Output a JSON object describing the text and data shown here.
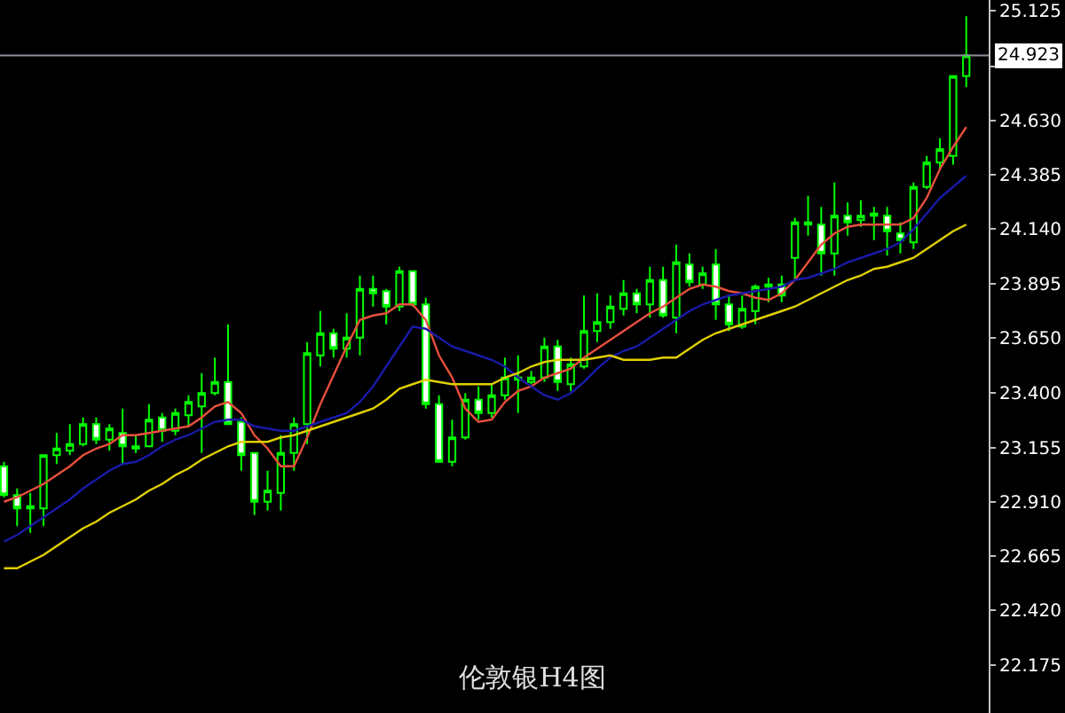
{
  "chart_data": {
    "type": "candlestick",
    "title": "伦敦银H4图",
    "categories": [
      null,
      null,
      null,
      null,
      null,
      null,
      null,
      null,
      null,
      null,
      null,
      null,
      null,
      null,
      null,
      null,
      null,
      null,
      null,
      null,
      null,
      null,
      null,
      null,
      null,
      null,
      null,
      null,
      null,
      null,
      null,
      null,
      null,
      null,
      null,
      null,
      null,
      null,
      null,
      null,
      null,
      null,
      null,
      null,
      null,
      null,
      null,
      null,
      null,
      null,
      null,
      null,
      null,
      null,
      null,
      null,
      null,
      null,
      null,
      null,
      null,
      null,
      null,
      null,
      null,
      null,
      null,
      null,
      null,
      null,
      null,
      null,
      null,
      null
    ],
    "color": "#00ff00",
    "ohlc": [
      [
        23.07,
        23.09,
        22.93,
        22.94
      ],
      [
        22.94,
        22.97,
        22.8,
        22.88
      ],
      [
        22.88,
        22.95,
        22.77,
        22.89
      ],
      [
        22.88,
        23.12,
        22.8,
        23.12
      ],
      [
        23.12,
        23.22,
        23.08,
        23.15
      ],
      [
        23.14,
        23.26,
        23.12,
        23.17
      ],
      [
        23.17,
        23.29,
        23.16,
        23.26
      ],
      [
        23.26,
        23.29,
        23.17,
        23.19
      ],
      [
        23.19,
        23.26,
        23.14,
        23.24
      ],
      [
        23.22,
        23.33,
        23.08,
        23.16
      ],
      [
        23.15,
        23.21,
        23.13,
        23.16
      ],
      [
        23.16,
        23.35,
        23.16,
        23.28
      ],
      [
        23.29,
        23.31,
        23.18,
        23.23
      ],
      [
        23.23,
        23.33,
        23.21,
        23.31
      ],
      [
        23.3,
        23.39,
        23.25,
        23.36
      ],
      [
        23.34,
        23.49,
        23.13,
        23.4
      ],
      [
        23.4,
        23.56,
        23.39,
        23.45
      ],
      [
        23.45,
        23.71,
        23.26,
        23.26
      ],
      [
        23.27,
        23.29,
        23.05,
        23.12
      ],
      [
        23.13,
        23.13,
        22.85,
        22.91
      ],
      [
        22.91,
        23.05,
        22.87,
        22.96
      ],
      [
        22.95,
        23.21,
        22.87,
        23.13
      ],
      [
        23.13,
        23.29,
        23.05,
        23.26
      ],
      [
        23.26,
        23.63,
        23.17,
        23.58
      ],
      [
        23.57,
        23.77,
        23.52,
        23.67
      ],
      [
        23.67,
        23.69,
        23.56,
        23.6
      ],
      [
        23.6,
        23.76,
        23.56,
        23.65
      ],
      [
        23.65,
        23.93,
        23.57,
        23.87
      ],
      [
        23.87,
        23.93,
        23.79,
        23.85
      ],
      [
        23.86,
        23.87,
        23.71,
        23.79
      ],
      [
        23.79,
        23.97,
        23.77,
        23.95
      ],
      [
        23.95,
        23.95,
        23.79,
        23.8
      ],
      [
        23.8,
        23.83,
        23.33,
        23.35
      ],
      [
        23.35,
        23.39,
        23.09,
        23.09
      ],
      [
        23.09,
        23.28,
        23.07,
        23.2
      ],
      [
        23.2,
        23.4,
        23.19,
        23.37
      ],
      [
        23.37,
        23.43,
        23.28,
        23.31
      ],
      [
        23.31,
        23.44,
        23.29,
        23.39
      ],
      [
        23.39,
        23.56,
        23.37,
        23.47
      ],
      [
        23.47,
        23.57,
        23.31,
        23.46
      ],
      [
        23.45,
        23.5,
        23.44,
        23.47
      ],
      [
        23.47,
        23.65,
        23.45,
        23.61
      ],
      [
        23.61,
        23.64,
        23.41,
        23.45
      ],
      [
        23.44,
        23.56,
        23.41,
        23.53
      ],
      [
        23.52,
        23.84,
        23.51,
        23.68
      ],
      [
        23.68,
        23.85,
        23.63,
        23.72
      ],
      [
        23.72,
        23.84,
        23.69,
        23.79
      ],
      [
        23.78,
        23.91,
        23.75,
        23.85
      ],
      [
        23.85,
        23.87,
        23.76,
        23.8
      ],
      [
        23.8,
        23.97,
        23.74,
        23.91
      ],
      [
        23.91,
        23.97,
        23.74,
        23.75
      ],
      [
        23.74,
        24.07,
        23.67,
        23.99
      ],
      [
        23.98,
        24.03,
        23.88,
        23.9
      ],
      [
        23.89,
        23.97,
        23.87,
        23.94
      ],
      [
        23.98,
        24.05,
        23.73,
        23.8
      ],
      [
        23.8,
        23.84,
        23.68,
        23.71
      ],
      [
        23.7,
        23.84,
        23.69,
        23.78
      ],
      [
        23.77,
        23.89,
        23.71,
        23.88
      ],
      [
        23.88,
        23.92,
        23.81,
        23.89
      ],
      [
        23.89,
        23.93,
        23.81,
        23.84
      ],
      [
        24.01,
        24.19,
        23.91,
        24.17
      ],
      [
        24.16,
        24.29,
        24.11,
        24.17
      ],
      [
        24.16,
        24.24,
        23.93,
        24.03
      ],
      [
        24.03,
        24.35,
        23.93,
        24.2
      ],
      [
        24.2,
        24.26,
        24.11,
        24.17
      ],
      [
        24.18,
        24.27,
        24.15,
        24.2
      ],
      [
        24.2,
        24.24,
        24.09,
        24.21
      ],
      [
        24.2,
        24.24,
        24.02,
        24.13
      ],
      [
        24.12,
        24.17,
        24.03,
        24.09
      ],
      [
        24.08,
        24.35,
        24.05,
        24.33
      ],
      [
        24.33,
        24.47,
        24.32,
        24.44
      ],
      [
        24.44,
        24.55,
        24.41,
        24.5
      ],
      [
        24.47,
        24.83,
        24.43,
        24.83
      ],
      [
        24.83,
        25.1,
        24.78,
        24.923
      ]
    ],
    "series": [
      {
        "type": "line",
        "color": "#e8503c",
        "values": [
          22.91,
          22.93,
          22.96,
          22.99,
          23.03,
          23.07,
          23.12,
          23.15,
          23.17,
          23.21,
          23.21,
          23.22,
          23.23,
          23.24,
          23.25,
          23.29,
          23.34,
          23.36,
          23.31,
          23.21,
          23.15,
          23.07,
          23.07,
          23.2,
          23.35,
          23.48,
          23.61,
          23.73,
          23.75,
          23.76,
          23.8,
          23.8,
          23.73,
          23.57,
          23.47,
          23.33,
          23.27,
          23.28,
          23.36,
          23.41,
          23.43,
          23.47,
          23.49,
          23.51,
          23.56,
          23.6,
          23.64,
          23.68,
          23.72,
          23.76,
          23.79,
          23.83,
          23.87,
          23.89,
          23.88,
          23.86,
          23.85,
          23.83,
          23.82,
          23.85,
          23.91,
          23.99,
          24.07,
          24.12,
          24.15,
          24.16,
          24.16,
          24.16,
          24.16,
          24.19,
          24.28,
          24.41,
          24.51,
          24.6
        ]
      },
      {
        "type": "line",
        "color": "#1a1aa8",
        "values": [
          22.73,
          22.76,
          22.8,
          22.84,
          22.88,
          22.92,
          22.97,
          23.01,
          23.05,
          23.08,
          23.09,
          23.12,
          23.16,
          23.19,
          23.21,
          23.24,
          23.27,
          23.28,
          23.28,
          23.25,
          23.24,
          23.23,
          23.23,
          23.25,
          23.27,
          23.29,
          23.31,
          23.36,
          23.43,
          23.52,
          23.61,
          23.7,
          23.69,
          23.65,
          23.61,
          23.59,
          23.57,
          23.55,
          23.52,
          23.47,
          23.43,
          23.39,
          23.37,
          23.4,
          23.45,
          23.51,
          23.56,
          23.59,
          23.61,
          23.65,
          23.69,
          23.73,
          23.77,
          23.8,
          23.82,
          23.84,
          23.85,
          23.86,
          23.87,
          23.88,
          23.91,
          23.92,
          23.94,
          23.96,
          23.99,
          24.01,
          24.03,
          24.05,
          24.08,
          24.14,
          24.21,
          24.28,
          24.33,
          24.38
        ]
      },
      {
        "type": "line",
        "color": "#e0d000",
        "values": [
          22.61,
          22.61,
          22.64,
          22.67,
          22.71,
          22.75,
          22.79,
          22.82,
          22.86,
          22.89,
          22.92,
          22.96,
          22.99,
          23.03,
          23.06,
          23.1,
          23.13,
          23.16,
          23.18,
          23.18,
          23.18,
          23.2,
          23.21,
          23.23,
          23.25,
          23.27,
          23.29,
          23.31,
          23.33,
          23.37,
          23.42,
          23.44,
          23.46,
          23.45,
          23.44,
          23.44,
          23.44,
          23.44,
          23.47,
          23.49,
          23.52,
          23.54,
          23.55,
          23.55,
          23.55,
          23.56,
          23.57,
          23.55,
          23.55,
          23.55,
          23.56,
          23.56,
          23.6,
          23.64,
          23.67,
          23.69,
          23.71,
          23.73,
          23.75,
          23.77,
          23.79,
          23.82,
          23.85,
          23.88,
          23.91,
          23.93,
          23.96,
          23.97,
          23.99,
          24.01,
          24.05,
          24.09,
          24.13,
          24.16
        ]
      }
    ],
    "ylim": [
      21.957,
      25.173
    ],
    "yticks": [
      25.125,
      {
        "value": 24.875,
        "label": null
      },
      {
        "value": 24.63,
        "label": "24.630"
      },
      24.385,
      {
        "value": 24.14,
        "label": "24.140"
      },
      23.895,
      {
        "value": 23.65,
        "label": "23.650"
      },
      {
        "value": 23.4,
        "label": "23.400"
      },
      23.155,
      {
        "value": 22.91,
        "label": "22.910"
      },
      22.665,
      {
        "value": 22.42,
        "label": "22.420"
      },
      22.175
    ],
    "ref_lines": [
      {
        "axis": "y",
        "value": 24.923,
        "label": "24.923",
        "color": "#8a8f99"
      }
    ],
    "grid": false,
    "tick_labels": "y",
    "marker": "none",
    "line_style": "solid"
  }
}
